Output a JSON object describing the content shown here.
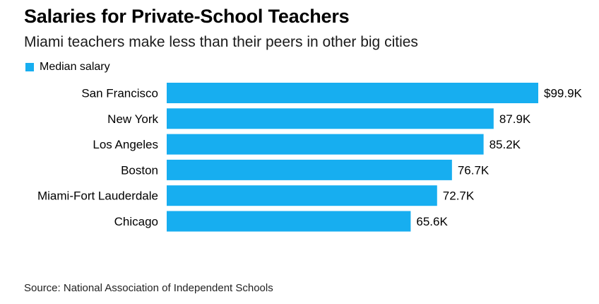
{
  "title": "Salaries for Private-School Teachers",
  "subtitle": "Miami teachers make less than their peers in other big cities",
  "source": "Source: National Association of Independent Schools",
  "colors": {
    "bar": "#17aef0",
    "text": "#000000"
  },
  "chart_data": {
    "type": "bar",
    "orientation": "horizontal",
    "title": "Salaries for Private-School Teachers",
    "subtitle": "Miami teachers make less than their peers in other big cities",
    "categories": [
      "San Francisco",
      "New York",
      "Los Angeles",
      "Boston",
      "Miami-Fort Lauderdale",
      "Chicago"
    ],
    "series": [
      {
        "name": "Median salary",
        "values": [
          99.9,
          87.9,
          85.2,
          76.7,
          72.7,
          65.6
        ],
        "data_labels": [
          "$99.9K",
          "87.9K",
          "85.2K",
          "76.7K",
          "72.7K",
          "65.6K"
        ]
      }
    ],
    "unit": "thousand USD",
    "xlim": [
      0,
      99.9
    ],
    "grid": false,
    "legend": "top-left"
  }
}
